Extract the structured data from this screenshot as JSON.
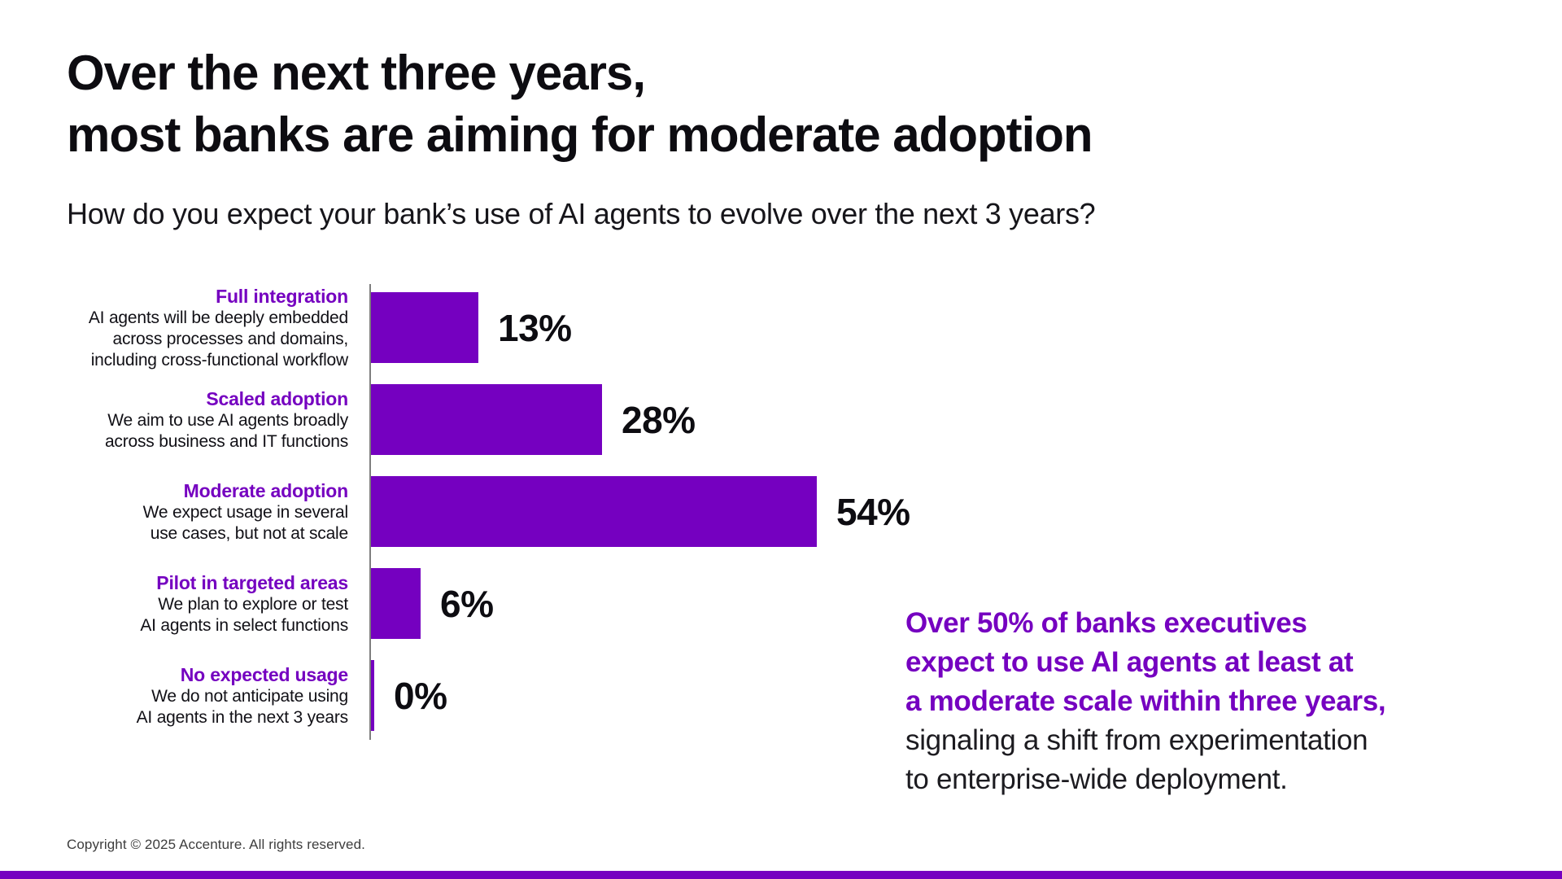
{
  "page": {
    "title_line1": "Over the next three years,",
    "title_line2": "most banks are aiming for moderate adoption",
    "subtitle": "How do you expect your bank’s use of AI agents to evolve over the next 3 years?",
    "footer": "Copyright © 2025 Accenture. All rights reserved."
  },
  "colors": {
    "purple": "#7500C0",
    "text_dark": "#0d0c11",
    "axis_gray": "#7e7e7e",
    "footer_gray": "#3d3d3d"
  },
  "chart_data": {
    "type": "bar",
    "orientation": "horizontal",
    "title": "How do you expect your bank’s use of AI agents to evolve over the next 3 years?",
    "unit": "%",
    "xlim": [
      0,
      57
    ],
    "grid": false,
    "legend": "none",
    "bar_color": "#7500C0",
    "categories": [
      "Full integration",
      "Scaled adoption",
      "Moderate adoption",
      "Pilot in targeted areas",
      "No expected usage"
    ],
    "values": [
      13,
      28,
      54,
      6,
      0
    ],
    "rows": [
      {
        "label": "Full integration",
        "desc_lines": [
          "AI agents will be deeply embedded",
          "across processes and domains,",
          "including cross-functional workflow"
        ],
        "value": 13,
        "value_label": "13%"
      },
      {
        "label": "Scaled adoption",
        "desc_lines": [
          "We aim to use AI agents broadly",
          "across business and IT functions"
        ],
        "value": 28,
        "value_label": "28%"
      },
      {
        "label": "Moderate adoption",
        "desc_lines": [
          "We expect usage in several",
          "use cases, but not at scale"
        ],
        "value": 54,
        "value_label": "54%"
      },
      {
        "label": "Pilot in targeted areas",
        "desc_lines": [
          "We plan to explore or test",
          "AI agents in select functions"
        ],
        "value": 6,
        "value_label": "6%"
      },
      {
        "label": "No expected usage",
        "desc_lines": [
          "We do not anticipate using",
          "AI agents in the next 3 years"
        ],
        "value": 0,
        "value_label": "0%"
      }
    ]
  },
  "callout": {
    "highlight_lines": [
      "Over 50% of banks executives",
      "expect to use AI agents at least at",
      "a moderate scale within three years,"
    ],
    "normal_lines": [
      "signaling a shift from experimentation",
      "to enterprise-wide deployment."
    ]
  }
}
